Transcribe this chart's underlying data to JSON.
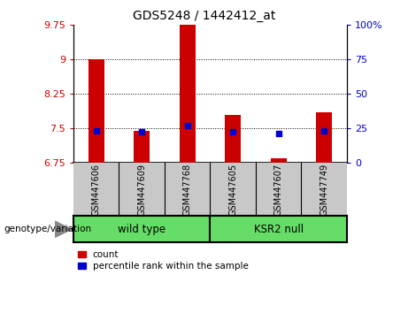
{
  "title": "GDS5248 / 1442412_at",
  "categories": [
    "GSM447606",
    "GSM447609",
    "GSM447768",
    "GSM447605",
    "GSM447607",
    "GSM447749"
  ],
  "group_labels": [
    "wild type",
    "KSR2 null"
  ],
  "red_values": [
    9.0,
    7.45,
    9.75,
    7.8,
    6.85,
    7.85
  ],
  "blue_values": [
    7.45,
    7.43,
    7.56,
    7.43,
    7.38,
    7.45
  ],
  "ylim_left": [
    6.75,
    9.75
  ],
  "ylim_right": [
    0,
    100
  ],
  "yticks_left": [
    6.75,
    7.5,
    8.25,
    9.0,
    9.75
  ],
  "yticks_right": [
    0,
    25,
    50,
    75,
    100
  ],
  "ytick_labels_left": [
    "6.75",
    "7.5",
    "8.25",
    "9",
    "9.75"
  ],
  "ytick_labels_right": [
    "0",
    "25",
    "50",
    "75",
    "100%"
  ],
  "grid_lines": [
    9.0,
    8.25,
    7.5
  ],
  "bar_bottom": 6.75,
  "bar_width": 0.35,
  "red_color": "#cc0000",
  "blue_color": "#0000cc",
  "group_bg_color": "#66dd66",
  "xlabel_area_color": "#c8c8c8",
  "legend_items": [
    "count",
    "percentile rank within the sample"
  ],
  "genotype_label": "genotype/variation",
  "left_tick_color": "#cc0000",
  "right_tick_color": "#0000cc"
}
